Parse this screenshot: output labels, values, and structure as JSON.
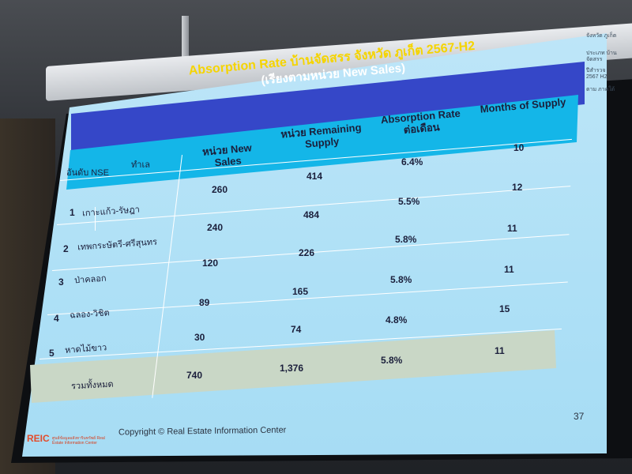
{
  "slide": {
    "title_line1": "Absorption Rate บ้านจัดสรร จังหวัด ภูเก็ต 2567-H2",
    "title_line2": "(เรียงตามหน่วย New Sales)",
    "headers": {
      "rank": "อันดับ NSE",
      "location": "ทำเล",
      "new_sales": "หน่วย New Sales",
      "remaining": "หน่วย Remaining Supply",
      "absorption": "Absorption Rate ต่อเดือน",
      "months": "Months of Supply"
    },
    "rows": [
      {
        "rank": "1",
        "location": "เกาะแก้ว-รัษฎา",
        "new_sales": "260",
        "remaining": "414",
        "absorption": "6.4%",
        "months": "10"
      },
      {
        "rank": "2",
        "location": "เทพกระษัตรี-ศรีสุนทร",
        "new_sales": "240",
        "remaining": "484",
        "absorption": "5.5%",
        "months": "12"
      },
      {
        "rank": "3",
        "location": "ป่าคลอก",
        "new_sales": "120",
        "remaining": "226",
        "absorption": "5.8%",
        "months": "11"
      },
      {
        "rank": "4",
        "location": "ฉลอง-วิชิต",
        "new_sales": "89",
        "remaining": "165",
        "absorption": "5.8%",
        "months": "11"
      },
      {
        "rank": "5",
        "location": "หาดไม้ขาว",
        "new_sales": "30",
        "remaining": "74",
        "absorption": "4.8%",
        "months": "15"
      }
    ],
    "total": {
      "label": "รวมทั้งหมด",
      "new_sales": "740",
      "remaining": "1,376",
      "absorption": "5.8%",
      "months": "11"
    },
    "page_number": "37",
    "footer": "Copyright © Real Estate Information Center",
    "logo_text": "REIC",
    "logo_subtext": "ศูนย์ข้อมูลอสังหาริมทรัพย์ Real Estate Information Center",
    "side_notes": [
      "จังหวัด ภูเก็ต",
      "ประเภท บ้านจัดสรร",
      "ปีสำรวจ 2567 H2",
      "ตาม ภาคใต้"
    ]
  },
  "colors": {
    "title_band": "#3547c8",
    "title_text": "#f5d400",
    "header_band": "#14b6e8",
    "screen_bg": "#aee0f6",
    "total_band": "#c9d7c6"
  }
}
